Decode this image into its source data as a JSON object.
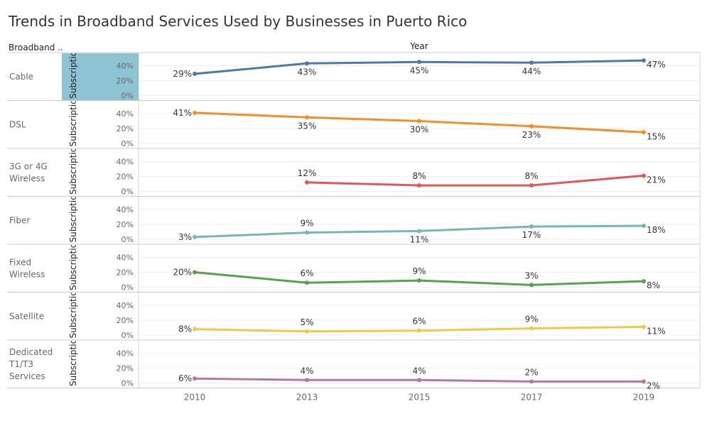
{
  "page": {
    "title": "Trends in Broadband Services Used by Businesses in Puerto Rico",
    "row_header": "Broadband ..",
    "column_header": "Year",
    "measure_label": "Subscription"
  },
  "chart_data": {
    "type": "line",
    "title": "Trends in Broadband Services Used by Businesses in Puerto Rico",
    "xlabel": "Year",
    "ylabel": "Subscription",
    "categories": [
      "2010",
      "2013",
      "2015",
      "2017",
      "2019"
    ],
    "y_ticks": [
      "0%",
      "20%",
      "40%"
    ],
    "ylim": [
      0,
      50
    ],
    "grid": true,
    "series": [
      {
        "name": "Cable",
        "label_lines": [
          "Cable"
        ],
        "color": "#4e79a7",
        "values": [
          29,
          43,
          45,
          44,
          47
        ],
        "labels": [
          "29%",
          "43%",
          "45%",
          "44%",
          "47%"
        ],
        "highlighted_axis": true
      },
      {
        "name": "DSL",
        "label_lines": [
          "DSL"
        ],
        "color": "#f28e2b",
        "values": [
          41,
          35,
          30,
          23,
          15
        ],
        "labels": [
          "41%",
          "35%",
          "30%",
          "23%",
          "15%"
        ]
      },
      {
        "name": "3G or 4G Wireless",
        "label_lines": [
          "3G or 4G",
          "Wireless"
        ],
        "color": "#e15759",
        "values": [
          null,
          12,
          8,
          8,
          21
        ],
        "labels": [
          "",
          "12%",
          "8%",
          "8%",
          "21%"
        ]
      },
      {
        "name": "Fiber",
        "label_lines": [
          "Fiber"
        ],
        "color": "#76b7b2",
        "values": [
          3,
          9,
          11,
          17,
          18
        ],
        "labels": [
          "3%",
          "9%",
          "11%",
          "17%",
          "18%"
        ]
      },
      {
        "name": "Fixed Wireless",
        "label_lines": [
          "Fixed",
          "Wireless"
        ],
        "color": "#59a14f",
        "values": [
          20,
          6,
          9,
          3,
          8
        ],
        "labels": [
          "20%",
          "6%",
          "9%",
          "3%",
          "8%"
        ]
      },
      {
        "name": "Satellite",
        "label_lines": [
          "Satellite"
        ],
        "color": "#edc948",
        "values": [
          8,
          5,
          6,
          9,
          11
        ],
        "labels": [
          "8%",
          "5%",
          "6%",
          "9%",
          "11%"
        ]
      },
      {
        "name": "Dedicated T1/T3 Services",
        "label_lines": [
          "Dedicated",
          "T1/T3",
          "Services"
        ],
        "color": "#b07aa1",
        "values": [
          6,
          4,
          4,
          2,
          2
        ],
        "labels": [
          "6%",
          "4%",
          "4%",
          "2%",
          "2%"
        ]
      }
    ]
  }
}
